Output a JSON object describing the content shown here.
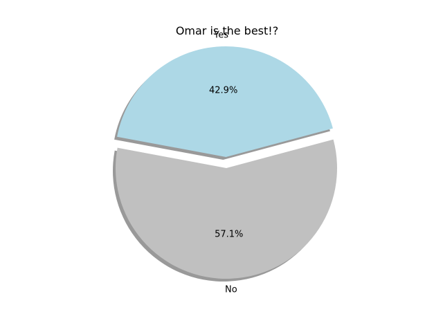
{
  "chart_data": {
    "type": "pie",
    "title": "Omar is the best!?",
    "labels": [
      "Yes",
      "No"
    ],
    "values": [
      42.9,
      57.1
    ],
    "percent_labels": [
      "42.9%",
      "57.1%"
    ],
    "colors": [
      "#add8e6",
      "#c0c0c0"
    ],
    "exploded": [
      true,
      false
    ],
    "shadow": true,
    "legend": "none"
  }
}
